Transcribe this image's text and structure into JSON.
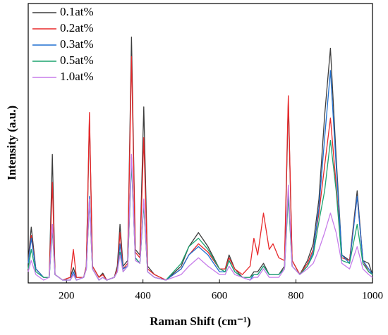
{
  "chart_data": {
    "type": "line",
    "xlabel": "Raman Shift (cm⁻¹)",
    "ylabel": "Intensity (a.u.)",
    "xlim": [
      100,
      1000
    ],
    "xticks": [
      200,
      400,
      600,
      800,
      1000
    ],
    "ylim": [
      0,
      100
    ],
    "legend": "upper left",
    "x": [
      100,
      108,
      120,
      140,
      155,
      163,
      170,
      190,
      210,
      218,
      226,
      245,
      252,
      260,
      268,
      285,
      295,
      305,
      325,
      333,
      340,
      348,
      360,
      370,
      380,
      392,
      402,
      412,
      430,
      460,
      500,
      520,
      545,
      570,
      600,
      615,
      625,
      640,
      660,
      680,
      690,
      700,
      715,
      730,
      740,
      755,
      770,
      780,
      790,
      810,
      830,
      845,
      860,
      875,
      890,
      905,
      920,
      940,
      960,
      975,
      990,
      1000
    ],
    "series": [
      {
        "name": "0.1at%",
        "color": "#3d3d3d",
        "values": [
          8,
          20,
          5,
          2,
          2,
          46,
          3,
          1,
          2,
          5.5,
          2,
          2,
          6,
          59,
          6,
          2,
          3.5,
          1,
          2,
          6,
          21,
          6,
          8,
          88,
          12,
          10,
          63,
          6,
          3,
          1,
          6,
          13,
          18,
          13,
          5,
          5,
          10,
          5,
          2,
          2,
          4,
          4,
          7,
          3,
          3,
          3,
          6,
          65,
          8,
          3,
          8,
          14,
          30,
          60,
          84,
          45,
          10,
          8,
          33,
          8,
          7,
          3
        ]
      },
      {
        "name": "0.2at%",
        "color": "#e8282a",
        "values": [
          7,
          17,
          5,
          2,
          2,
          36,
          3,
          1,
          2,
          12,
          2,
          2,
          6,
          61,
          6,
          2,
          3,
          1,
          2,
          5,
          18,
          5,
          7,
          81,
          11,
          9,
          52,
          5,
          3,
          1,
          5,
          10,
          14,
          11,
          5,
          5,
          9,
          5,
          3,
          6,
          16,
          10,
          25,
          12,
          14,
          9,
          8,
          67,
          8,
          3,
          7,
          12,
          25,
          42,
          59,
          35,
          9,
          8,
          31,
          8,
          4,
          3
        ]
      },
      {
        "name": "0.3at%",
        "color": "#1f6fd0",
        "values": [
          7,
          16,
          5,
          2,
          2,
          21,
          3,
          1,
          1,
          4,
          1,
          2,
          5,
          31,
          5,
          1,
          2,
          1,
          2,
          4,
          14,
          5,
          6,
          45,
          9,
          7,
          29,
          4,
          2,
          1,
          5,
          10,
          13,
          10,
          4,
          4,
          8,
          4,
          2,
          1,
          3,
          3,
          6,
          3,
          3,
          3,
          5,
          33,
          6,
          3,
          6,
          11,
          27,
          52,
          76,
          42,
          10,
          7,
          31,
          8,
          5,
          3
        ]
      },
      {
        "name": "0.5at%",
        "color": "#1ca36f",
        "values": [
          5,
          12,
          4,
          2,
          2,
          19,
          3,
          1,
          1,
          3,
          1,
          2,
          5,
          29,
          5,
          1,
          2,
          1,
          2,
          4,
          11,
          4,
          6,
          43,
          9,
          7,
          28,
          4,
          2,
          1,
          7,
          13,
          16,
          12,
          5,
          4,
          8,
          4,
          2,
          2,
          3,
          3,
          6,
          3,
          3,
          3,
          5,
          31,
          6,
          3,
          6,
          10,
          22,
          33,
          51,
          33,
          8,
          7,
          21,
          7,
          4,
          3
        ]
      },
      {
        "name": "1.0at%",
        "color": "#c77dea",
        "values": [
          4,
          8,
          3,
          1,
          2,
          21,
          3,
          1,
          1,
          3,
          1,
          2,
          5,
          30,
          5,
          1,
          2,
          1,
          2,
          4,
          10,
          4,
          6,
          46,
          8,
          7,
          30,
          4,
          2,
          1,
          3,
          6,
          9,
          6,
          3,
          3,
          6,
          3,
          2,
          1,
          2,
          2,
          5,
          2,
          2,
          2,
          5,
          35,
          6,
          3,
          5,
          7,
          12,
          18,
          25,
          18,
          7,
          5,
          13,
          5,
          3,
          2
        ]
      }
    ]
  }
}
